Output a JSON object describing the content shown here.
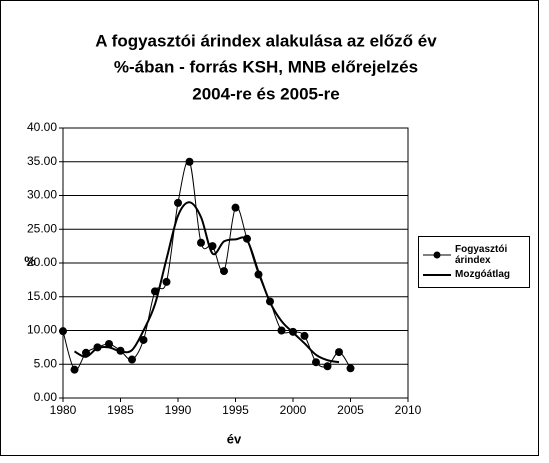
{
  "chart_data": {
    "type": "line",
    "title": [
      "A fogyasztói árindex alakulása az előző év",
      "%-ában - forrás KSH, MNB előrejelzés",
      "2004-re és 2005-re"
    ],
    "xlabel": "év",
    "ylabel": "%",
    "x": [
      1980,
      1981,
      1982,
      1983,
      1984,
      1985,
      1986,
      1987,
      1988,
      1989,
      1990,
      1991,
      1992,
      1993,
      1994,
      1995,
      1996,
      1997,
      1998,
      1999,
      2000,
      2001,
      2002,
      2003,
      2004,
      2005
    ],
    "series": [
      {
        "name": "Fogyasztói árindex",
        "color": "#000000",
        "marker": true,
        "values": [
          9.9,
          4.2,
          6.7,
          7.5,
          8.0,
          7.0,
          5.7,
          8.6,
          15.8,
          17.2,
          28.9,
          35.0,
          23.0,
          22.5,
          18.8,
          28.2,
          23.6,
          18.3,
          14.3,
          10.0,
          9.8,
          9.2,
          5.3,
          4.7,
          6.8,
          4.4
        ]
      },
      {
        "name": "Mozgóátlag",
        "color": "#000000",
        "marker": false,
        "values": [
          null,
          6.9,
          6.1,
          7.4,
          7.5,
          6.9,
          7.1,
          10.0,
          13.9,
          20.6,
          27.0,
          29.0,
          26.8,
          21.4,
          23.2,
          23.5,
          23.4,
          18.7,
          14.2,
          11.4,
          9.7,
          8.1,
          6.4,
          5.6,
          5.3,
          null
        ]
      }
    ],
    "xlim": [
      1980,
      2010
    ],
    "xticks": [
      1980,
      1985,
      1990,
      1995,
      2000,
      2005,
      2010
    ],
    "ylim": [
      0,
      40
    ],
    "yticks": [
      {
        "value": 0,
        "label": "0.00"
      },
      {
        "value": 5,
        "label": "5.00"
      },
      {
        "value": 10,
        "label": "10.00"
      },
      {
        "value": 15,
        "label": "15.00"
      },
      {
        "value": 20,
        "label": "20.00"
      },
      {
        "value": 25,
        "label": "25.00"
      },
      {
        "value": 30,
        "label": "30.00"
      },
      {
        "value": 35,
        "label": "35.00"
      },
      {
        "value": 40,
        "label": "40.00"
      }
    ],
    "grid": true,
    "smooth": true,
    "legend": "right"
  }
}
